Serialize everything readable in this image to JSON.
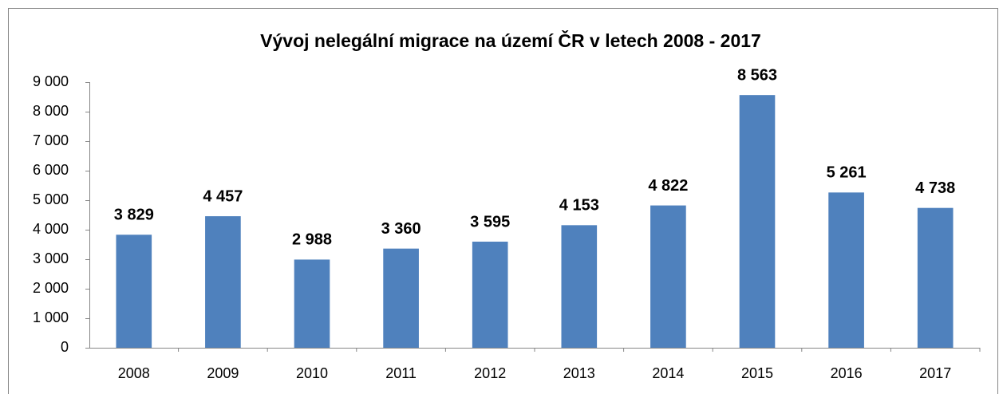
{
  "chart_data": {
    "type": "bar",
    "title": "Vývoj nelegální migrace na území ČR v letech  2008 - 2017",
    "categories": [
      "2008",
      "2009",
      "2010",
      "2011",
      "2012",
      "2013",
      "2014",
      "2015",
      "2016",
      "2017"
    ],
    "values": [
      3829,
      4457,
      2988,
      3360,
      3595,
      4153,
      4822,
      8563,
      5261,
      4738
    ],
    "value_labels": [
      "3 829",
      "4 457",
      "2 988",
      "3 360",
      "3 595",
      "4 153",
      "4 822",
      "8 563",
      "5 261",
      "4 738"
    ],
    "color": "#4f81bd",
    "ylim": [
      0,
      9000
    ],
    "yticks": [
      0,
      {
        "value": 1000,
        "label": "1 000"
      },
      {
        "value": 2000,
        "label": "2 000"
      },
      {
        "value": 3000,
        "label": "3 000"
      },
      {
        "value": 4000,
        "label": "4 000"
      },
      {
        "value": 5000,
        "label": "5 000"
      },
      {
        "value": 6000,
        "label": "6 000"
      },
      {
        "value": 7000,
        "label": "7 000"
      },
      {
        "value": 8000,
        "label": "8 000"
      },
      {
        "value": 9000,
        "label": "9 000"
      }
    ],
    "grid": false
  }
}
